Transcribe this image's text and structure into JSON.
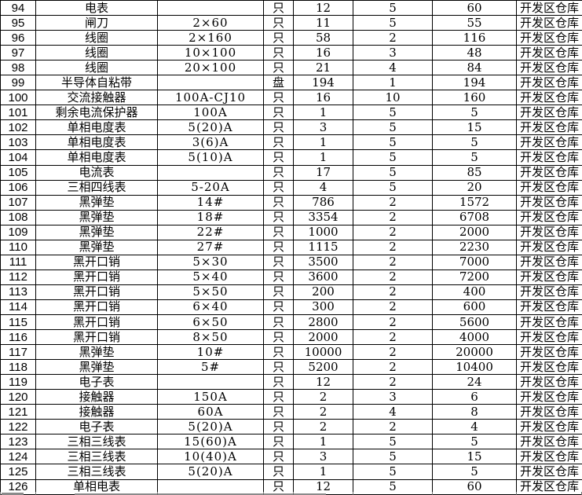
{
  "colors": {
    "background": "#ffffff",
    "grid_border": "#000000",
    "text": "#000000"
  },
  "table": {
    "rows": [
      [
        "94",
        "电表",
        "",
        "只",
        "12",
        "5",
        "60",
        "开发区仓库"
      ],
      [
        "95",
        "闸刀",
        "2×60",
        "只",
        "11",
        "5",
        "55",
        "开发区仓库"
      ],
      [
        "96",
        "线圈",
        "2×160",
        "只",
        "58",
        "2",
        "116",
        "开发区仓库"
      ],
      [
        "97",
        "线圈",
        "10×100",
        "只",
        "16",
        "3",
        "48",
        "开发区仓库"
      ],
      [
        "98",
        "线圈",
        "20×100",
        "只",
        "21",
        "4",
        "84",
        "开发区仓库"
      ],
      [
        "99",
        "半导体自粘带",
        "",
        "盘",
        "194",
        "1",
        "194",
        "开发区仓库"
      ],
      [
        "100",
        "交流接触器",
        "100A-CJ10",
        "只",
        "16",
        "10",
        "160",
        "开发区仓库"
      ],
      [
        "101",
        "剩余电流保护器",
        "100A",
        "只",
        "1",
        "5",
        "5",
        "开发区仓库"
      ],
      [
        "102",
        "单相电度表",
        "5(20)A",
        "只",
        "3",
        "5",
        "15",
        "开发区仓库"
      ],
      [
        "103",
        "单相电度表",
        "3(6)A",
        "只",
        "1",
        "5",
        "5",
        "开发区仓库"
      ],
      [
        "104",
        "单相电度表",
        "5(10)A",
        "只",
        "1",
        "5",
        "5",
        "开发区仓库"
      ],
      [
        "105",
        "电流表",
        "",
        "只",
        "17",
        "5",
        "85",
        "开发区仓库"
      ],
      [
        "106",
        "三相四线表",
        "5-20A",
        "只",
        "4",
        "5",
        "20",
        "开发区仓库"
      ],
      [
        "107",
        "黑弹垫",
        "14#",
        "只",
        "786",
        "2",
        "1572",
        "开发区仓库"
      ],
      [
        "108",
        "黑弹垫",
        "18#",
        "只",
        "3354",
        "2",
        "6708",
        "开发区仓库"
      ],
      [
        "109",
        "黑弹垫",
        "22#",
        "只",
        "1000",
        "2",
        "2000",
        "开发区仓库"
      ],
      [
        "110",
        "黑弹垫",
        "27#",
        "只",
        "1115",
        "2",
        "2230",
        "开发区仓库"
      ],
      [
        "111",
        "黑开口销",
        "5×30",
        "只",
        "3500",
        "2",
        "7000",
        "开发区仓库"
      ],
      [
        "112",
        "黑开口销",
        "5×40",
        "只",
        "3600",
        "2",
        "7200",
        "开发区仓库"
      ],
      [
        "113",
        "黑开口销",
        "5×50",
        "只",
        "200",
        "2",
        "400",
        "开发区仓库"
      ],
      [
        "114",
        "黑开口销",
        "6×40",
        "只",
        "300",
        "2",
        "600",
        "开发区仓库"
      ],
      [
        "115",
        "黑开口销",
        "6×50",
        "只",
        "2800",
        "2",
        "5600",
        "开发区仓库"
      ],
      [
        "116",
        "黑开口销",
        "8×50",
        "只",
        "2000",
        "2",
        "4000",
        "开发区仓库"
      ],
      [
        "117",
        "黑弹垫",
        "10#",
        "只",
        "10000",
        "2",
        "20000",
        "开发区仓库"
      ],
      [
        "118",
        "黑弹垫",
        "5#",
        "只",
        "5200",
        "2",
        "10400",
        "开发区仓库"
      ],
      [
        "119",
        "电子表",
        "",
        "只",
        "12",
        "2",
        "24",
        "开发区仓库"
      ],
      [
        "120",
        "接触器",
        "150A",
        "只",
        "2",
        "3",
        "6",
        "开发区仓库"
      ],
      [
        "121",
        "接触器",
        "60A",
        "只",
        "2",
        "4",
        "8",
        "开发区仓库"
      ],
      [
        "122",
        "电子表",
        "5(20)A",
        "只",
        "2",
        "2",
        "4",
        "开发区仓库"
      ],
      [
        "123",
        "三相三线表",
        "15(60)A",
        "只",
        "1",
        "5",
        "5",
        "开发区仓库"
      ],
      [
        "124",
        "三相三线表",
        "10(40)A",
        "只",
        "3",
        "5",
        "15",
        "开发区仓库"
      ],
      [
        "125",
        "三相三线表",
        "5(20)A",
        "只",
        "1",
        "5",
        "5",
        "开发区仓库"
      ],
      [
        "126",
        "单相电表",
        "",
        "只",
        "12",
        "5",
        "60",
        "开发区仓库"
      ]
    ]
  }
}
